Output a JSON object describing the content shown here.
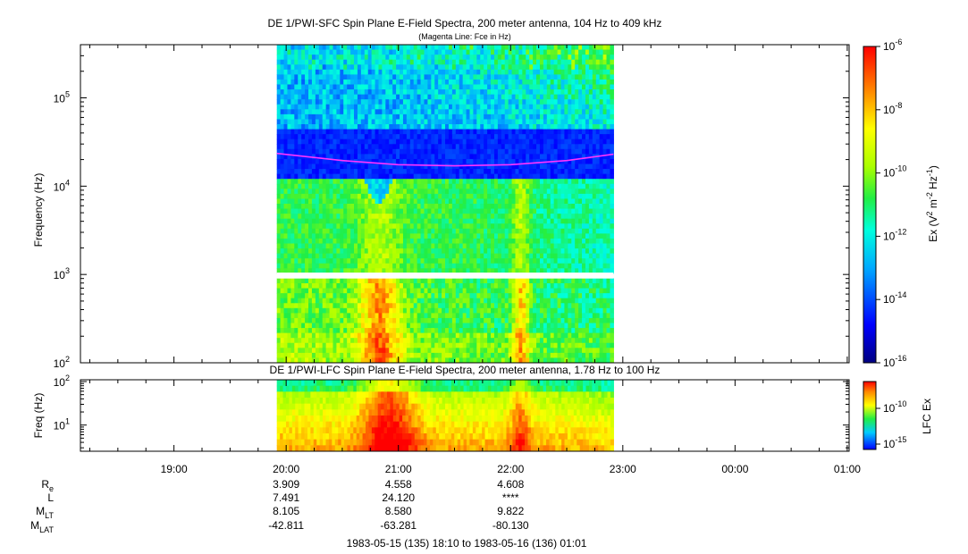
{
  "chart_data": [
    {
      "type": "heatmap",
      "title": "DE 1/PWI-SFC  Spin Plane E-Field Spectra, 200 meter antenna, 104 Hz to 409 kHz",
      "subtitle": "(Magenta Line: Fce in Hz)",
      "ylabel": "Frequency (Hz)",
      "y_scale": "log",
      "ylim": [
        100,
        400000
      ],
      "y_ticks": [
        {
          "value": 100,
          "base": "10",
          "exp": "2"
        },
        {
          "value": 1000,
          "base": "10",
          "exp": "3"
        },
        {
          "value": 10000,
          "base": "10",
          "exp": "4"
        },
        {
          "value": 100000,
          "base": "10",
          "exp": "5"
        }
      ],
      "xlim": [
        "1983-05-15 18:10",
        "1983-05-16 01:01"
      ],
      "data_time_range": [
        "1983-05-15 19:55",
        "1983-05-15 22:55"
      ],
      "data_gap_hz": [
        900,
        1050
      ],
      "colorbar": {
        "label": "Ex (V2 m-2 Hz-1)",
        "label_parts": {
          "pre": "Ex (V",
          "sup1": "2",
          "mid": " m",
          "sup2": "-2",
          "mid2": " Hz",
          "sup3": "-1",
          "post": ")"
        },
        "scale": "log",
        "range": [
          1e-16,
          1e-06
        ],
        "ticks": [
          {
            "base": "10",
            "exp": "-6"
          },
          {
            "base": "10",
            "exp": "-8"
          },
          {
            "base": "10",
            "exp": "-10"
          },
          {
            "base": "10",
            "exp": "-12"
          },
          {
            "base": "10",
            "exp": "-14"
          },
          {
            "base": "10",
            "exp": "-16"
          }
        ]
      },
      "overlay_line": {
        "color": "#ff33ff",
        "x": [
          "19:55",
          "20:30",
          "21:00",
          "21:30",
          "22:00",
          "22:30",
          "22:55"
        ],
        "y": [
          23500,
          19500,
          17500,
          17000,
          17500,
          19500,
          23000
        ]
      }
    },
    {
      "type": "heatmap",
      "title": "DE 1/PWI-LFC  Spin Plane E-Field Spectra, 200 meter antenna, 1.78 Hz to 100 Hz",
      "ylabel": "Freq (Hz)",
      "y_scale": "log",
      "ylim": [
        2.5,
        110
      ],
      "y_ticks": [
        {
          "value": 10,
          "base": "10",
          "exp": "1"
        },
        {
          "value": 100,
          "base": "10",
          "exp": "2"
        }
      ],
      "data_time_range": [
        "1983-05-15 19:55",
        "1983-05-15 22:55"
      ],
      "colorbar": {
        "label": "LFC Ex",
        "scale": "log",
        "ticks": [
          {
            "base": "10",
            "exp": "-10"
          },
          {
            "base": "10",
            "exp": "-15"
          }
        ]
      }
    }
  ],
  "x_axis": {
    "tick_labels": [
      "19:00",
      "20:00",
      "21:00",
      "22:00",
      "23:00",
      "00:00",
      "01:00"
    ],
    "footer": "1983-05-15 (135) 18:10 to 1983-05-16 (136) 01:01"
  },
  "ephemeris": {
    "rows": [
      {
        "label": "R",
        "sub": "e",
        "values": [
          "3.909",
          "4.558",
          "4.608"
        ]
      },
      {
        "label": "L",
        "sub": "",
        "values": [
          "7.491",
          "24.120",
          "****"
        ]
      },
      {
        "label": "M",
        "sub": "LT",
        "values": [
          "8.105",
          "8.580",
          "9.822"
        ]
      },
      {
        "label": "M",
        "sub": "LAT",
        "values": [
          "-42.811",
          "-63.281",
          "-80.130"
        ]
      }
    ]
  }
}
